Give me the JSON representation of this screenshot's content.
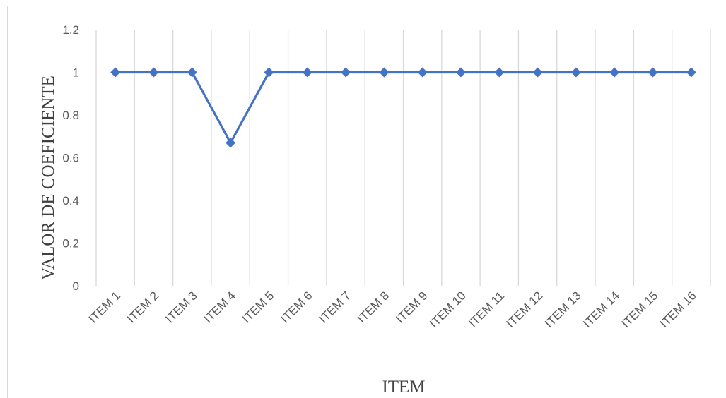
{
  "chart_data": {
    "type": "line",
    "categories": [
      "ITEM 1",
      "ITEM 2",
      "ITEM 3",
      "ITEM 4",
      "ITEM 5",
      "ITEM 6",
      "ITEM 7",
      "ITEM 8",
      "ITEM 9",
      "ITEM 10",
      "ITEM 11",
      "ITEM 12",
      "ITEM 13",
      "ITEM 14",
      "ITEM 15",
      "ITEM 16"
    ],
    "series": [
      {
        "values": [
          1,
          1,
          1,
          0.67,
          1,
          1,
          1,
          1,
          1,
          1,
          1,
          1,
          1,
          1,
          1,
          1
        ]
      }
    ],
    "xlabel": "ITEM",
    "ylabel": "VALOR DE COEFICIENTE",
    "ylim": [
      0,
      1.2
    ],
    "yticks": [
      "0",
      "0.2",
      "0.4",
      "0.6",
      "0.8",
      "1",
      "1.2"
    ],
    "grid": "vertical",
    "legend": "none",
    "colors": {
      "line": "#4472c4",
      "grid": "#d9d9d9",
      "text": "#595959"
    }
  }
}
